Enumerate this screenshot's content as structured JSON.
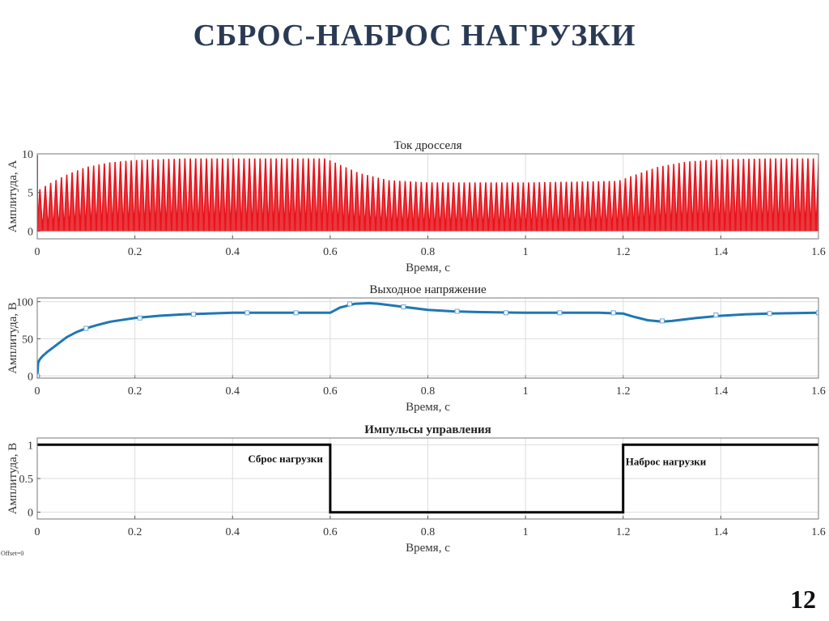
{
  "slide": {
    "title": "СБРОС-НАБРОС НАГРУЗКИ",
    "number": "12",
    "offset_label": "Offset=0"
  },
  "chart_data": [
    {
      "type": "line",
      "title": "Ток дросселя",
      "xlabel": "Время, с",
      "ylabel": "Амплитуда, А",
      "xlim": [
        0,
        1.6
      ],
      "ylim": [
        -1,
        10
      ],
      "xticks": [
        "0",
        "0.2",
        "0.4",
        "0.6",
        "0.8",
        "1",
        "1.2",
        "1.4",
        "1.6"
      ],
      "yticks": [
        "0",
        "5",
        "10"
      ],
      "grid": true,
      "series": [
        {
          "style": "ripple",
          "color": "#e8141c",
          "ripple_min": 0,
          "envelope_x": [
            0,
            0.005,
            0.02,
            0.06,
            0.1,
            0.15,
            0.2,
            0.3,
            0.4,
            0.5,
            0.59,
            0.62,
            0.66,
            0.72,
            0.8,
            0.9,
            1.0,
            1.1,
            1.19,
            1.22,
            1.27,
            1.33,
            1.4,
            1.5,
            1.6
          ],
          "envelope_y": [
            9.8,
            5.4,
            6.0,
            7.3,
            8.3,
            8.9,
            9.2,
            9.4,
            9.4,
            9.4,
            9.4,
            8.6,
            7.5,
            6.6,
            6.3,
            6.3,
            6.3,
            6.4,
            6.5,
            7.2,
            8.3,
            9.0,
            9.3,
            9.4,
            9.4
          ]
        }
      ]
    },
    {
      "type": "line",
      "title": "Выходное напряжение",
      "xlabel": "Время, с",
      "ylabel": "Амплитуда, В",
      "xlim": [
        0,
        1.6
      ],
      "ylim": [
        -3,
        105
      ],
      "xticks": [
        "0",
        "0.2",
        "0.4",
        "0.6",
        "0.8",
        "1",
        "1.2",
        "1.4",
        "1.6"
      ],
      "yticks": [
        "0",
        "50",
        "100"
      ],
      "grid": true,
      "series": [
        {
          "style": "line-markers",
          "color": "#1f77b4",
          "x": [
            0,
            0.002,
            0.005,
            0.01,
            0.02,
            0.04,
            0.06,
            0.08,
            0.1,
            0.12,
            0.15,
            0.2,
            0.25,
            0.3,
            0.35,
            0.4,
            0.45,
            0.5,
            0.55,
            0.59,
            0.6,
            0.62,
            0.65,
            0.68,
            0.7,
            0.75,
            0.8,
            0.85,
            0.9,
            1.0,
            1.1,
            1.15,
            1.2,
            1.22,
            1.25,
            1.28,
            1.3,
            1.35,
            1.4,
            1.45,
            1.5,
            1.6
          ],
          "y": [
            0,
            18,
            22,
            26,
            32,
            42,
            52,
            59,
            64,
            68,
            73,
            78,
            81,
            83,
            84,
            85,
            85,
            85,
            85,
            85,
            85,
            92,
            97,
            98,
            97,
            93,
            89,
            87,
            86,
            85,
            85,
            85,
            84,
            80,
            75,
            73,
            74,
            78,
            81,
            83,
            84,
            85
          ],
          "markers_x": [
            0,
            0.1,
            0.21,
            0.32,
            0.43,
            0.53,
            0.64,
            0.75,
            0.86,
            0.96,
            1.07,
            1.18,
            1.28,
            1.39,
            1.5,
            1.6
          ],
          "markers_y": [
            0,
            64,
            78,
            83,
            85,
            85,
            97,
            93,
            87,
            85,
            85,
            85,
            74,
            82,
            84,
            85
          ]
        }
      ]
    },
    {
      "type": "line",
      "title": "Импульсы управления",
      "xlabel": "Время, с",
      "ylabel": "Амплитуда, В",
      "xlim": [
        0,
        1.6
      ],
      "ylim": [
        -0.1,
        1.1
      ],
      "xticks": [
        "0",
        "0.2",
        "0.4",
        "0.6",
        "0.8",
        "1",
        "1.2",
        "1.4",
        "1.6"
      ],
      "yticks": [
        "0",
        "0.5",
        "1"
      ],
      "grid": true,
      "series": [
        {
          "style": "step",
          "color": "#000000",
          "x": [
            0,
            0.6,
            0.6,
            1.2,
            1.2,
            1.6
          ],
          "y": [
            1,
            1,
            0,
            0,
            1,
            1
          ]
        }
      ],
      "annotations": [
        {
          "text": "Сброс нагрузки",
          "x": 0.585,
          "y": 0.74,
          "anchor": "end"
        },
        {
          "text": "Наброс нагрузки",
          "x": 1.205,
          "y": 0.7,
          "anchor": "start"
        }
      ]
    }
  ]
}
